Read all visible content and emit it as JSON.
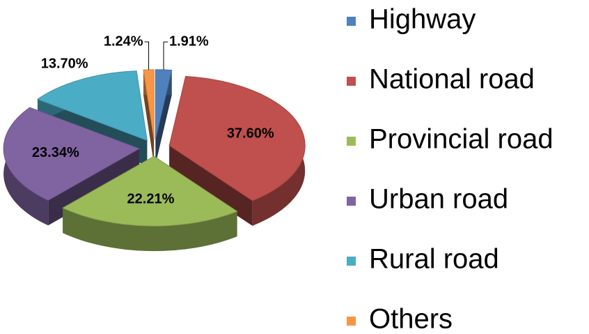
{
  "chart_data": {
    "type": "pie",
    "categories": [
      "Highway",
      "National road",
      "Provincial road",
      "Urban road",
      "Rural road",
      "Others"
    ],
    "values": [
      1.91,
      37.6,
      22.21,
      23.34,
      13.7,
      1.24
    ],
    "value_labels": [
      "1.91%",
      "37.60%",
      "22.21%",
      "23.34%",
      "13.70%",
      "1.24%"
    ],
    "colors": [
      "#4f81bd",
      "#c0504d",
      "#9bbb59",
      "#8064a2",
      "#4bacc6",
      "#f79646"
    ],
    "legend": "right"
  }
}
